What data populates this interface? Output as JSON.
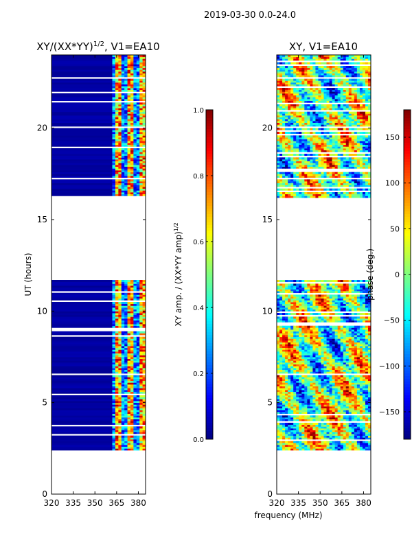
{
  "suptitle": "2019-03-30 0.0-24.0",
  "xlabel_shared": "frequency (MHz)",
  "colors": {
    "jet": [
      "#00007f",
      "#0000ff",
      "#007fff",
      "#00ffff",
      "#7fff7f",
      "#ffff00",
      "#ff7f00",
      "#ff0000",
      "#7f0000"
    ],
    "frame": "#000000",
    "gap": "#ffffff"
  },
  "chart_data": [
    {
      "type": "heatmap",
      "title_prefix": "XY/(XX*YY)",
      "title_sup": "1/2",
      "title_suffix": ", V1=EA10",
      "xlabel": "",
      "ylabel": "UT (hours)",
      "xlim": [
        320,
        385
      ],
      "ylim": [
        0,
        24
      ],
      "xticks": [
        320,
        335,
        350,
        365,
        380
      ],
      "xtick_labels": [
        "320",
        "335",
        "350",
        "365",
        "380"
      ],
      "yticks": [
        0,
        5,
        10,
        15,
        20
      ],
      "ytick_labels": [
        "0",
        "5",
        "10",
        "15",
        "20"
      ],
      "data_time_ranges": [
        [
          2.4,
          11.7
        ],
        [
          16.2,
          24.0
        ]
      ],
      "signal_frequency_range": [
        362,
        385
      ],
      "background_value": 0.02,
      "colorbar": {
        "label_prefix": "XY amp. / (XX*YY amp)",
        "label_sup": "1/2",
        "ticks": [
          0.0,
          0.2,
          0.4,
          0.6,
          0.8,
          1.0
        ],
        "tick_labels": [
          "0.0",
          "0.2",
          "0.4",
          "0.6",
          "0.8",
          "1.0"
        ],
        "range": [
          0.0,
          1.0
        ]
      }
    },
    {
      "type": "heatmap",
      "title": "XY, V1=EA10",
      "xlabel": "",
      "ylabel": "",
      "xlim": [
        320,
        385
      ],
      "ylim": [
        0,
        24
      ],
      "xticks": [
        320,
        335,
        350,
        365,
        380
      ],
      "xtick_labels": [
        "320",
        "335",
        "350",
        "365",
        "380"
      ],
      "yticks": [
        0,
        5,
        10,
        15,
        20
      ],
      "ytick_labels": [
        "0",
        "5",
        "10",
        "15",
        "20"
      ],
      "data_time_ranges": [
        [
          2.4,
          11.7
        ],
        [
          16.2,
          24.0
        ]
      ],
      "colorbar": {
        "label": "phase (deg.)",
        "ticks": [
          -150,
          -100,
          -50,
          0,
          50,
          100,
          150
        ],
        "tick_labels": [
          "−150",
          "−100",
          "−50",
          "0",
          "50",
          "100",
          "150"
        ],
        "range": [
          -180,
          180
        ]
      }
    }
  ]
}
